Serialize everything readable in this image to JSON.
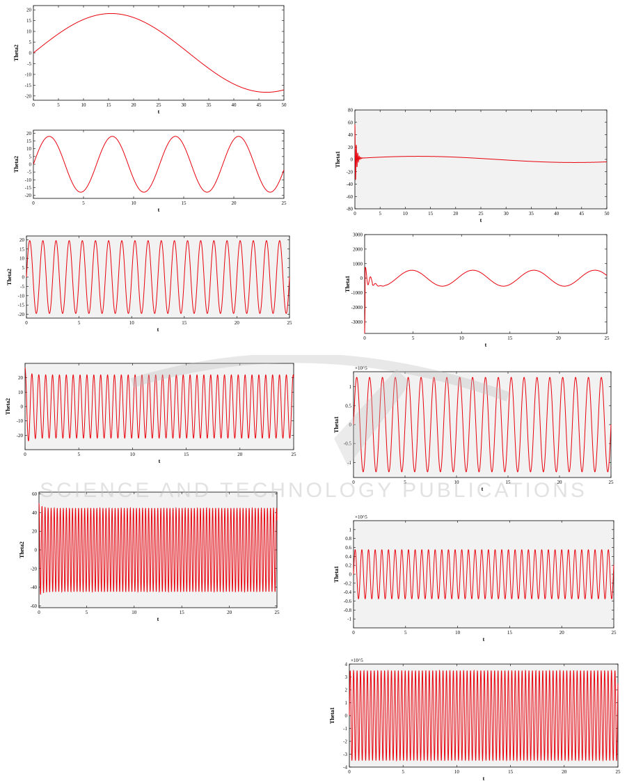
{
  "watermark": "SCIENCE AND TECHNOLOGY PUBLICATIONS",
  "colors": {
    "series": "#e8000b",
    "panel_bg": "#f2f2f2",
    "axis": "#000000"
  },
  "chart_data": [
    {
      "id": "left-1",
      "type": "line",
      "xlabel": "t",
      "ylabel": "Theta2",
      "xlim": [
        0,
        50
      ],
      "ylim": [
        -22,
        22
      ],
      "xticks": [
        0,
        5,
        10,
        15,
        20,
        25,
        30,
        35,
        40,
        45,
        50
      ],
      "xtick_labels": [
        "0",
        "5",
        "10",
        "15",
        "20",
        "25",
        "30",
        "35",
        "40",
        "45",
        "50"
      ],
      "yticks": [
        -20,
        -15,
        -10,
        -5,
        0,
        5,
        10,
        15,
        20
      ],
      "ytick_labels": [
        "-20",
        "-15",
        "-10",
        "-5",
        "0",
        "5",
        "10",
        "15",
        "20"
      ],
      "series": [
        {
          "amplitude": 18.3,
          "period": 62,
          "cycles_shown": 0.8
        }
      ]
    },
    {
      "id": "left-2",
      "type": "line",
      "xlabel": "t",
      "ylabel": "Theta2",
      "xlim": [
        0,
        25
      ],
      "ylim": [
        -22,
        22
      ],
      "xticks": [
        0,
        5,
        10,
        15,
        20,
        25
      ],
      "xtick_labels": [
        "0",
        "5",
        "10",
        "15",
        "20",
        "25"
      ],
      "yticks": [
        -20,
        -15,
        -10,
        -5,
        0,
        5,
        10,
        15,
        20
      ],
      "ytick_labels": [
        "-20",
        "-15",
        "-10",
        "-5",
        "0",
        "5",
        "10",
        "15",
        "20"
      ],
      "series": [
        {
          "amplitude": 18,
          "period": 6.3
        }
      ]
    },
    {
      "id": "left-3",
      "type": "line",
      "xlabel": "t",
      "ylabel": "Theta2",
      "xlim": [
        0,
        25
      ],
      "ylim": [
        -22,
        22
      ],
      "xticks": [
        0,
        5,
        10,
        15,
        20,
        25
      ],
      "xtick_labels": [
        "0",
        "5",
        "10",
        "15",
        "20",
        "25"
      ],
      "yticks": [
        -20,
        -15,
        -10,
        -5,
        0,
        5,
        10,
        15,
        20
      ],
      "ytick_labels": [
        "-20",
        "-15",
        "-10",
        "-5",
        "0",
        "5",
        "10",
        "15",
        "20"
      ],
      "series": [
        {
          "amplitude": 19.5,
          "period": 1.25
        }
      ]
    },
    {
      "id": "left-4",
      "type": "line",
      "xlabel": "t",
      "ylabel": "Theta2",
      "xlim": [
        0,
        25
      ],
      "ylim": [
        -30,
        30
      ],
      "xticks": [
        0,
        5,
        10,
        15,
        20,
        25
      ],
      "xtick_labels": [
        "0",
        "5",
        "10",
        "15",
        "20",
        "25"
      ],
      "yticks": [
        -20,
        -10,
        0,
        10,
        20
      ],
      "ytick_labels": [
        "-20",
        "-10",
        "0",
        "10",
        "20"
      ],
      "series": [
        {
          "amplitude": 22,
          "period": 0.64,
          "initial_peak": 27
        }
      ]
    },
    {
      "id": "left-5",
      "type": "line",
      "xlabel": "t",
      "ylabel": "Theta2",
      "xlim": [
        0,
        25
      ],
      "ylim": [
        -62,
        62
      ],
      "xticks": [
        0,
        5,
        10,
        15,
        20,
        25
      ],
      "xtick_labels": [
        "0",
        "5",
        "10",
        "15",
        "20",
        "25"
      ],
      "yticks": [
        -60,
        -40,
        -20,
        0,
        20,
        40,
        60
      ],
      "ytick_labels": [
        "-60",
        "-40",
        "-20",
        "0",
        "20",
        "40",
        "60"
      ],
      "series": [
        {
          "amplitude": 45,
          "period": 0.32,
          "initial_peak": 50
        }
      ]
    },
    {
      "id": "right-1",
      "type": "line",
      "xlabel": "t",
      "ylabel": "Theta1",
      "xlim": [
        0,
        50
      ],
      "ylim": [
        -80,
        80
      ],
      "xticks": [
        0,
        5,
        10,
        15,
        20,
        25,
        30,
        35,
        40,
        45,
        50
      ],
      "xtick_labels": [
        "0",
        "5",
        "10",
        "15",
        "20",
        "25",
        "30",
        "35",
        "40",
        "45",
        "50"
      ],
      "yticks": [
        -80,
        -60,
        -40,
        -20,
        0,
        20,
        40,
        60,
        80
      ],
      "ytick_labels": [
        "-80",
        "-60",
        "-40",
        "-20",
        "0",
        "20",
        "40",
        "60",
        "80"
      ],
      "series": [
        {
          "amplitude": 5,
          "period": 62,
          "initial_peak": 55
        }
      ]
    },
    {
      "id": "right-2",
      "type": "line",
      "xlabel": "t",
      "ylabel": "Theta1",
      "xlim": [
        0,
        25
      ],
      "ylim": [
        -3800,
        3000
      ],
      "xticks": [
        0,
        5,
        10,
        15,
        20,
        25
      ],
      "xtick_labels": [
        "0",
        "5",
        "10",
        "15",
        "20",
        "25"
      ],
      "yticks": [
        -3000,
        -2000,
        -1000,
        0,
        1000,
        2000,
        3000
      ],
      "ytick_labels": [
        "-3000",
        "-2000",
        "-1000",
        "0",
        "1000",
        "2000",
        "3000"
      ],
      "series": [
        {
          "amplitude": 550,
          "period": 6.3,
          "initial_peak": 350
        }
      ]
    },
    {
      "id": "right-3",
      "type": "line",
      "xlabel": "t",
      "ylabel": "Theta1",
      "xlim": [
        0,
        25
      ],
      "ylim": [
        -1.4,
        1.4
      ],
      "exponent_label": "×10^5",
      "xticks": [
        0,
        5,
        10,
        15,
        20,
        25
      ],
      "xtick_labels": [
        "0",
        "5",
        "10",
        "15",
        "20",
        "25"
      ],
      "yticks": [
        -1,
        -0.5,
        0,
        0.5,
        1
      ],
      "ytick_labels": [
        "-1",
        "-0.5",
        "0",
        "0.5",
        "1"
      ],
      "series": [
        {
          "amplitude": 1.25,
          "period": 1.25
        }
      ]
    },
    {
      "id": "right-4",
      "type": "line",
      "xlabel": "t",
      "ylabel": "Theta1",
      "xlim": [
        0,
        25
      ],
      "ylim": [
        -1.2,
        1.2
      ],
      "exponent_label": "×10^5",
      "xticks": [
        0,
        5,
        10,
        15,
        20,
        25
      ],
      "xtick_labels": [
        "0",
        "5",
        "10",
        "15",
        "20",
        "25"
      ],
      "yticks": [
        -1,
        -0.8,
        -0.6,
        -0.4,
        -0.2,
        0,
        0.2,
        0.4,
        0.6,
        0.8,
        1
      ],
      "ytick_labels": [
        "-1",
        "-0.8",
        "-0.6",
        "-0.4",
        "-0.2",
        "0",
        "0.2",
        "0.4",
        "0.6",
        "0.8",
        "1"
      ],
      "series": [
        {
          "amplitude": 0.55,
          "period": 0.64
        }
      ]
    },
    {
      "id": "right-5",
      "type": "line",
      "xlabel": "t",
      "ylabel": "Theta1",
      "xlim": [
        0,
        25
      ],
      "ylim": [
        -4,
        4
      ],
      "exponent_label": "×10^5",
      "xticks": [
        0,
        5,
        10,
        15,
        20,
        25
      ],
      "xtick_labels": [
        "0",
        "5",
        "10",
        "15",
        "20",
        "25"
      ],
      "yticks": [
        -4,
        -3,
        -2,
        -1,
        0,
        1,
        2,
        3,
        4
      ],
      "ytick_labels": [
        "-4",
        "-3",
        "-2",
        "-1",
        "0",
        "1",
        "2",
        "3",
        "4"
      ],
      "series": [
        {
          "amplitude": 3.5,
          "period": 0.32
        }
      ]
    }
  ]
}
